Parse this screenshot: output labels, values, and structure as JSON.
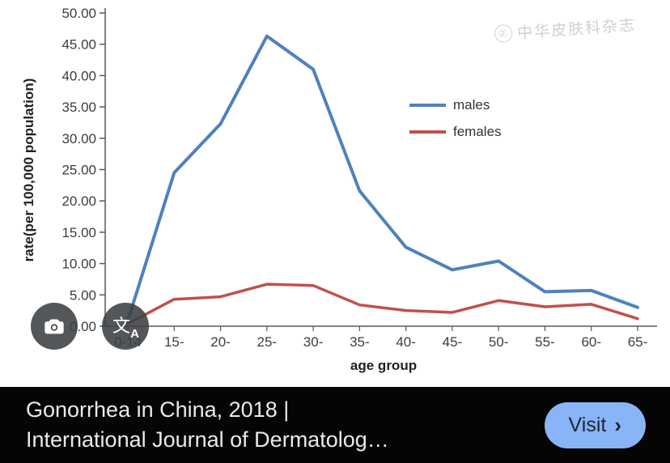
{
  "chart_data": {
    "type": "line",
    "title": "",
    "categories": [
      "0-14",
      "15-",
      "20-",
      "25-",
      "30-",
      "35-",
      "40-",
      "45-",
      "50-",
      "55-",
      "60-",
      "65-"
    ],
    "series": [
      {
        "name": "males",
        "color": "#4F81BD",
        "values": [
          0.9,
          24.5,
          32.3,
          46.3,
          41.0,
          21.6,
          12.6,
          9.0,
          10.4,
          5.5,
          5.7,
          3.0
        ]
      },
      {
        "name": "females",
        "color": "#C0504D",
        "values": [
          0.4,
          4.3,
          4.7,
          6.7,
          6.5,
          3.4,
          2.5,
          2.2,
          4.1,
          3.1,
          3.5,
          1.2
        ]
      }
    ],
    "xlabel": "age group",
    "ylabel": "rate(per 100,000 population)",
    "ylim": [
      0,
      50
    ],
    "ytick_step": 5,
    "ytick_format": "2dp",
    "grid": false,
    "legend_position": "center-right"
  },
  "watermark": {
    "text": "中华皮肤科杂志",
    "emblem": "㊣"
  },
  "overlay_buttons": {
    "lens": "search-with-camera",
    "translate": "translate-image-text"
  },
  "bottom_bar": {
    "title_line1": "Gonorrhea in China, 2018 |",
    "title_line2": "International Journal of Dermatolog…",
    "visit_label": "Visit",
    "visit_chevron": "›"
  },
  "colors": {
    "male_line": "#4F81BD",
    "female_line": "#C0504D",
    "axis": "#595959",
    "bottom_bar_bg": "#050505",
    "visit_button_bg": "#8AB4F8",
    "visit_button_text": "#1F2430",
    "overlay_button_bg": "#3C4043"
  }
}
